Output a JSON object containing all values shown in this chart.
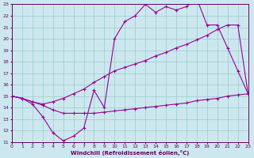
{
  "xlabel": "Windchill (Refroidissement éolien,°C)",
  "bg_color": "#cce8ee",
  "line_color": "#990099",
  "grid_color": "#99cccc",
  "xlim": [
    0,
    23
  ],
  "ylim": [
    11,
    23
  ],
  "xticks": [
    0,
    1,
    2,
    3,
    4,
    5,
    6,
    7,
    8,
    9,
    10,
    11,
    12,
    13,
    14,
    15,
    16,
    17,
    18,
    19,
    20,
    21,
    22,
    23
  ],
  "yticks": [
    11,
    12,
    13,
    14,
    15,
    16,
    17,
    18,
    19,
    20,
    21,
    22,
    23
  ],
  "curve1_x": [
    0,
    1,
    2,
    3,
    4,
    5,
    6,
    7,
    8,
    9,
    10,
    11,
    12,
    13,
    14,
    15,
    16,
    17,
    18,
    19,
    20,
    21,
    22,
    23
  ],
  "curve1_y": [
    15,
    14.8,
    14.3,
    13.2,
    11.8,
    11.1,
    11.5,
    12.2,
    15.5,
    14.0,
    20.0,
    21.5,
    22.0,
    23.0,
    22.3,
    22.8,
    22.5,
    22.8,
    23.5,
    21.2,
    21.2,
    19.2,
    17.2,
    15.2
  ],
  "curve2_x": [
    0,
    1,
    2,
    3,
    4,
    5,
    6,
    7,
    8,
    9,
    10,
    11,
    12,
    13,
    14,
    15,
    16,
    17,
    18,
    19,
    20,
    21,
    22,
    23
  ],
  "curve2_y": [
    15.0,
    14.8,
    14.5,
    14.3,
    14.5,
    14.8,
    15.2,
    15.6,
    16.2,
    16.7,
    17.2,
    17.5,
    17.8,
    18.1,
    18.5,
    18.8,
    19.2,
    19.5,
    19.9,
    20.3,
    20.8,
    21.2,
    21.2,
    15.2
  ],
  "curve3_x": [
    0,
    1,
    2,
    3,
    4,
    5,
    6,
    7,
    8,
    9,
    10,
    11,
    12,
    13,
    14,
    15,
    16,
    17,
    18,
    19,
    20,
    21,
    22,
    23
  ],
  "curve3_y": [
    15.0,
    14.8,
    14.5,
    14.2,
    13.8,
    13.5,
    13.5,
    13.5,
    13.5,
    13.6,
    13.7,
    13.8,
    13.9,
    14.0,
    14.1,
    14.2,
    14.3,
    14.4,
    14.6,
    14.7,
    14.8,
    15.0,
    15.1,
    15.2
  ]
}
